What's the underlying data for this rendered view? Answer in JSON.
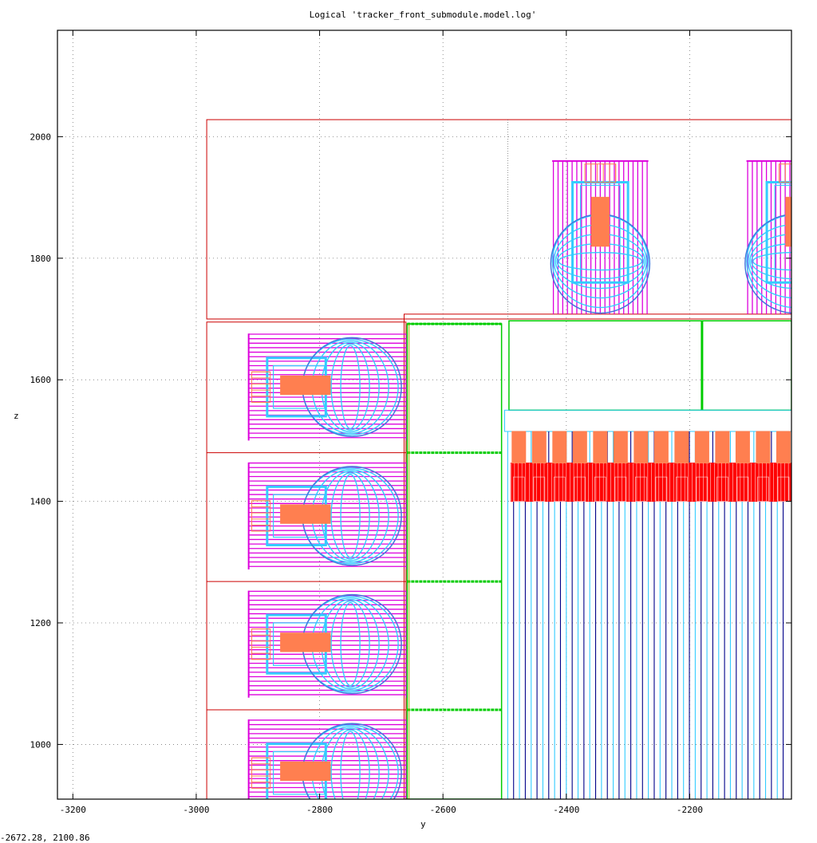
{
  "chart_data": {
    "type": "scatter",
    "title": "Logical 'tracker_front_submodule.model.log'",
    "xlabel": "y",
    "ylabel": "z",
    "xlim": [
      -3225,
      -2035
    ],
    "ylim": [
      910,
      2175
    ],
    "xticks": [
      -3200,
      -3000,
      -2800,
      -2600,
      -2400,
      -2200
    ],
    "yticks": [
      1000,
      1200,
      1400,
      1600,
      1800,
      2000
    ],
    "xtick_labels": [
      "-3200",
      "-3000",
      "-2800",
      "-2600",
      "-2400",
      "-2200"
    ],
    "ytick_labels": [
      "1000",
      "1200",
      "1400",
      "1600",
      "1800",
      "2000"
    ],
    "grid": true,
    "colors": {
      "envelope": "#cc0000",
      "module": "#dd00dd",
      "tube": "#33ccff",
      "electronics": "#ff7f50",
      "frame": "#00cc00",
      "wire": "#000088",
      "chip": "#ff0000"
    }
  },
  "status": {
    "mouse_coordinates": "-2672.28,  2100.86"
  }
}
